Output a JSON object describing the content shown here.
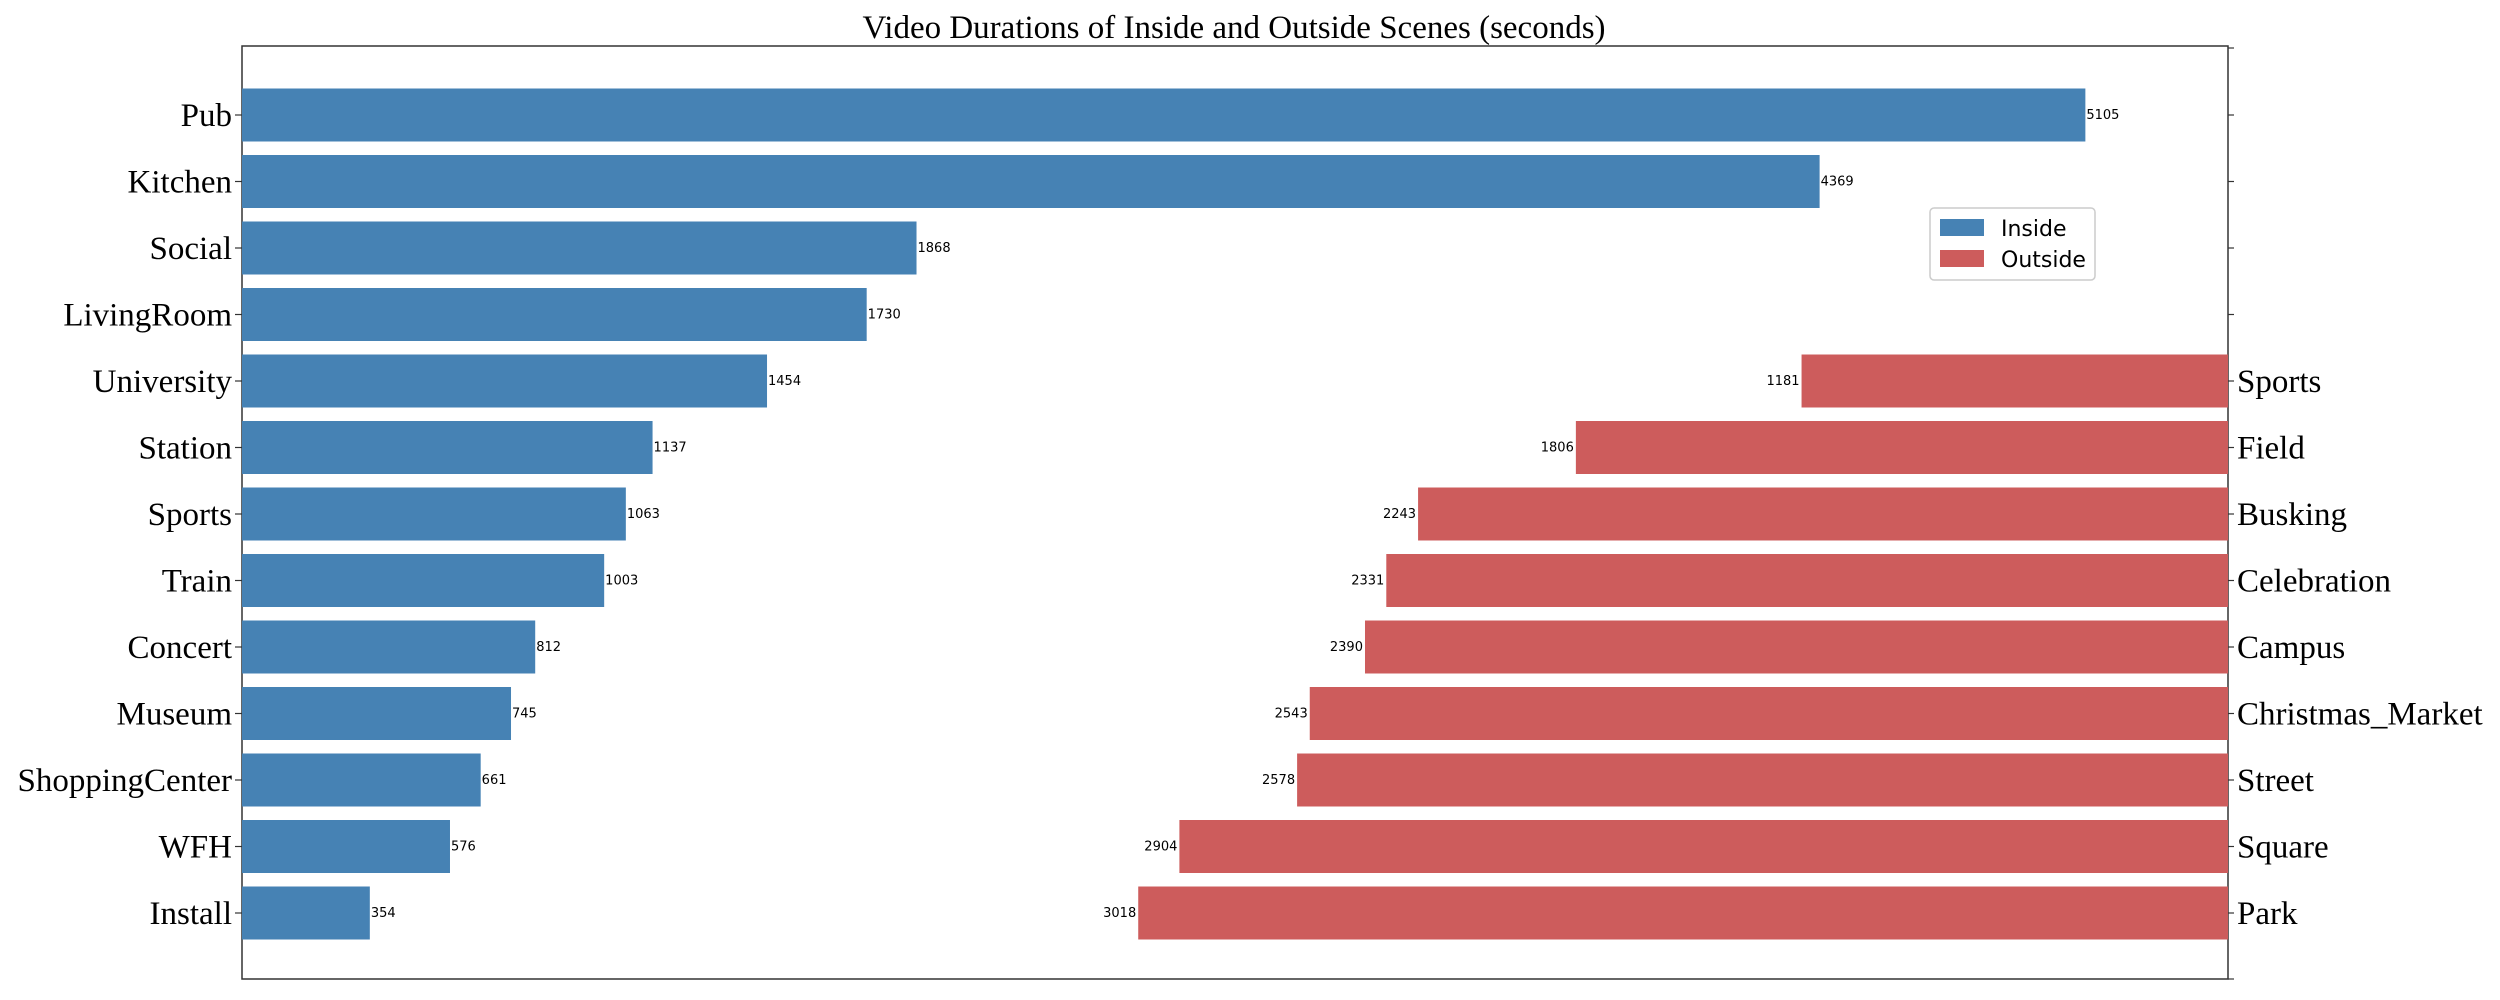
{
  "chart_data": {
    "type": "bar",
    "orientation": "horizontal",
    "title": "Video Durations of Inside and Outside Scenes (seconds)",
    "xlim": [
      0,
      5500
    ],
    "legend": {
      "placement": "upper-right",
      "entries": [
        {
          "name": "Inside",
          "color": "#4682b4"
        },
        {
          "name": "Outside",
          "color": "#cd5c5c"
        }
      ]
    },
    "inside": {
      "name": "Inside",
      "color": "#4682b4",
      "categories": [
        "Pub",
        "Kitchen",
        "Social",
        "LivingRoom",
        "University",
        "Station",
        "Sports",
        "Train",
        "Concert",
        "Museum",
        "ShoppingCenter",
        "WFH",
        "Install"
      ],
      "values": [
        5105,
        4369,
        1868,
        1730,
        1454,
        1137,
        1063,
        1003,
        812,
        745,
        661,
        576,
        354
      ]
    },
    "outside": {
      "name": "Outside",
      "color": "#cd5c5c",
      "categories": [
        "Sports",
        "Field",
        "Busking",
        "Celebration",
        "Campus",
        "Christmas_Market",
        "Street",
        "Square",
        "Park"
      ],
      "values": [
        1181,
        1806,
        2243,
        2331,
        2390,
        2543,
        2578,
        2904,
        3018
      ]
    }
  }
}
